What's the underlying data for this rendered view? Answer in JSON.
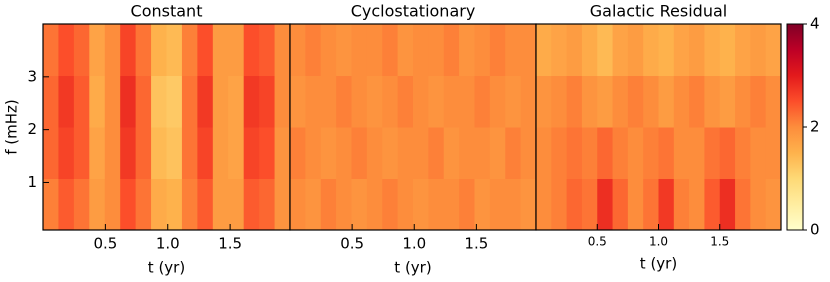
{
  "chart_data": [
    {
      "type": "heatmap",
      "title": "Constant",
      "xlabel": "t (yr)",
      "ylabel": "f (mHz)",
      "xlim": [
        0,
        1.98
      ],
      "ylim": [
        0.1,
        4.0
      ],
      "xticks": [
        0.5,
        {
          "value": 1,
          "label": "1.0"
        },
        1.5
      ],
      "yticks": [
        1,
        2,
        3
      ],
      "zlim": [
        0,
        4
      ],
      "z": [
        [
          2.1,
          2.4,
          2.2,
          1.8,
          2.0,
          2.5,
          2.2,
          1.6,
          1.5,
          2.1,
          2.4,
          1.8,
          1.8,
          2.4,
          2.3,
          1.9
        ],
        [
          2.3,
          2.6,
          2.4,
          1.7,
          2.0,
          2.7,
          2.3,
          1.4,
          1.3,
          2.2,
          2.6,
          1.8,
          1.7,
          2.6,
          2.5,
          1.9
        ],
        [
          2.3,
          2.7,
          2.4,
          1.6,
          2.0,
          2.8,
          2.3,
          1.3,
          1.2,
          2.2,
          2.7,
          1.8,
          1.7,
          2.7,
          2.6,
          2.0
        ],
        [
          2.2,
          2.5,
          2.3,
          1.7,
          2.0,
          2.6,
          2.2,
          1.5,
          1.4,
          2.1,
          2.5,
          1.8,
          1.8,
          2.5,
          2.4,
          2.0
        ]
      ]
    },
    {
      "type": "heatmap",
      "title": "Cyclostationary",
      "xlabel": "t (yr)",
      "xlim": [
        0,
        1.98
      ],
      "ylim": [
        0.1,
        4.0
      ],
      "xticks": [
        0.5,
        {
          "value": 1,
          "label": "1.0"
        },
        1.5
      ],
      "zlim": [
        0,
        4
      ],
      "z": [
        [
          2.0,
          1.9,
          2.1,
          2.0,
          1.9,
          2.0,
          2.1,
          2.0,
          1.9,
          2.0,
          2.0,
          2.1,
          1.9,
          2.0,
          2.0,
          1.9
        ],
        [
          2.1,
          2.0,
          1.9,
          2.0,
          2.1,
          2.0,
          1.9,
          2.0,
          2.0,
          2.1,
          1.9,
          2.0,
          2.0,
          1.9,
          2.1,
          2.0
        ],
        [
          1.9,
          2.0,
          2.0,
          2.1,
          2.0,
          1.9,
          2.0,
          2.1,
          2.0,
          1.9,
          2.0,
          2.0,
          2.1,
          2.0,
          1.9,
          2.0
        ],
        [
          2.0,
          2.1,
          2.0,
          1.9,
          2.0,
          2.0,
          2.1,
          1.9,
          2.0,
          2.0,
          2.1,
          1.9,
          2.0,
          2.1,
          2.0,
          2.0
        ]
      ]
    },
    {
      "type": "heatmap",
      "title": "Galactic Residual",
      "xlabel": "t (yr)",
      "xlim": [
        0,
        2.0
      ],
      "ylim": [
        0.1,
        4.0
      ],
      "xticks": [
        0.5,
        {
          "value": 1,
          "label": "1.0"
        },
        1.5
      ],
      "zlim": [
        0,
        4
      ],
      "zticks": [
        0,
        2,
        4
      ],
      "colorbar": true,
      "z": [
        [
          2.0,
          2.1,
          2.3,
          2.2,
          2.8,
          2.3,
          2.0,
          2.2,
          2.7,
          2.1,
          2.0,
          2.4,
          2.8,
          2.2,
          2.0,
          1.9
        ],
        [
          2.0,
          2.1,
          2.2,
          2.1,
          2.3,
          2.1,
          2.0,
          2.1,
          2.2,
          2.0,
          2.0,
          2.2,
          2.3,
          2.1,
          2.0,
          2.0
        ],
        [
          1.9,
          2.0,
          2.1,
          1.9,
          1.8,
          2.0,
          2.1,
          2.0,
          1.8,
          2.0,
          2.1,
          1.9,
          1.8,
          2.0,
          2.1,
          2.0
        ],
        [
          1.6,
          1.7,
          1.8,
          1.6,
          1.4,
          1.7,
          1.8,
          1.6,
          1.5,
          1.7,
          1.8,
          1.6,
          1.5,
          1.7,
          1.8,
          1.7
        ]
      ]
    }
  ],
  "colorscale": [
    "#ffffcc",
    "#ffeda0",
    "#fed976",
    "#feb24c",
    "#fd8d3c",
    "#fc4e2a",
    "#e31a1c",
    "#bd0026",
    "#800026"
  ]
}
